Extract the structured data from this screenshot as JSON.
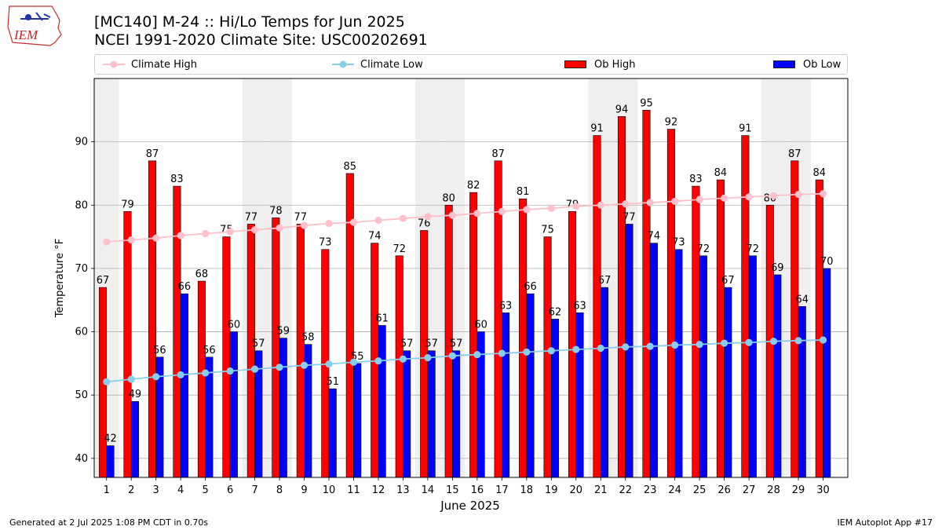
{
  "header": {
    "title_line1": "[MC140] M-24  :: Hi/Lo Temps for Jun 2025",
    "title_line2": "NCEI 1991-2020 Climate Site: USC00202691",
    "logo_text": "IEM"
  },
  "footer": {
    "left": "Generated at 2 Jul 2025 1:08 PM CDT in 0.70s",
    "right": "IEM Autoplot App #17"
  },
  "colors": {
    "ob_high": "#ff0000",
    "ob_low": "#0000ff",
    "climate_high": "#ffc0cb",
    "climate_low": "#87ceeb",
    "weekend_shade": "#efefef",
    "grid": "#b0b0b0"
  },
  "chart_data": {
    "type": "bar",
    "xlabel": "June 2025",
    "ylabel": "Temperature °F",
    "ylim": [
      37,
      100
    ],
    "yticks": [
      40,
      50,
      60,
      70,
      80,
      90
    ],
    "grid": "horizontal",
    "legend_position": "top",
    "categories": [
      "1",
      "2",
      "3",
      "4",
      "5",
      "6",
      "7",
      "8",
      "9",
      "10",
      "11",
      "12",
      "13",
      "14",
      "15",
      "16",
      "17",
      "18",
      "19",
      "20",
      "21",
      "22",
      "23",
      "24",
      "25",
      "26",
      "27",
      "28",
      "29",
      "30"
    ],
    "shaded_days": [
      1,
      7,
      8,
      14,
      15,
      21,
      22,
      28,
      29
    ],
    "series": [
      {
        "name": "Ob High",
        "type": "bar",
        "values": [
          67,
          79,
          87,
          83,
          68,
          75,
          77,
          78,
          77,
          73,
          85,
          74,
          72,
          76,
          80,
          82,
          87,
          81,
          75,
          79,
          91,
          94,
          95,
          92,
          83,
          84,
          91,
          80,
          87,
          84
        ],
        "labels": [
          67,
          79,
          87,
          83,
          68,
          75,
          77,
          78,
          77,
          73,
          85,
          74,
          72,
          76,
          80,
          82,
          87,
          81,
          75,
          79,
          91,
          94,
          95,
          92,
          83,
          84,
          91,
          80,
          87,
          84
        ]
      },
      {
        "name": "Ob Low",
        "type": "bar",
        "values": [
          42,
          49,
          56,
          66,
          56,
          60,
          57,
          59,
          58,
          51,
          55,
          61,
          57,
          57,
          57,
          60,
          63,
          66,
          62,
          63,
          67,
          77,
          74,
          73,
          72,
          67,
          72,
          69,
          64,
          70
        ],
        "labels": [
          42,
          49,
          56,
          66,
          56,
          60,
          57,
          59,
          58,
          51,
          55,
          61,
          57,
          57,
          57,
          60,
          63,
          66,
          62,
          63,
          67,
          77,
          74,
          73,
          72,
          67,
          72,
          69,
          64,
          70
        ]
      },
      {
        "name": "Climate High",
        "type": "line",
        "values": [
          74.2,
          74.5,
          74.8,
          75.2,
          75.5,
          75.8,
          76.1,
          76.4,
          76.8,
          77.1,
          77.3,
          77.6,
          77.9,
          78.2,
          78.4,
          78.7,
          79.0,
          79.3,
          79.5,
          79.8,
          80.0,
          80.2,
          80.4,
          80.6,
          80.9,
          81.1,
          81.3,
          81.5,
          81.7,
          81.8
        ]
      },
      {
        "name": "Climate Low",
        "type": "line",
        "values": [
          52.1,
          52.5,
          52.9,
          53.2,
          53.5,
          53.8,
          54.1,
          54.4,
          54.7,
          54.9,
          55.2,
          55.4,
          55.7,
          55.9,
          56.2,
          56.4,
          56.6,
          56.8,
          57.0,
          57.2,
          57.4,
          57.6,
          57.7,
          57.9,
          58.0,
          58.2,
          58.3,
          58.5,
          58.6,
          58.7
        ]
      }
    ]
  }
}
